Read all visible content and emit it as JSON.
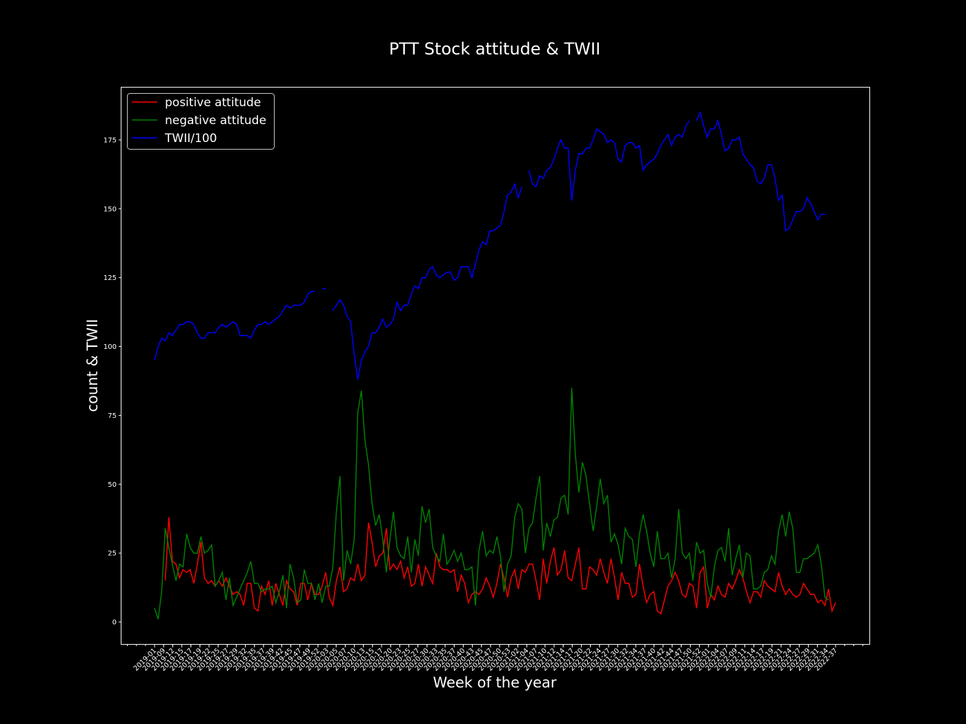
{
  "chart_data": {
    "type": "line",
    "title": "PTT Stock attitude & TWII",
    "xlabel": "Week of the year",
    "ylabel": "count & TWII",
    "ylim": [
      -8,
      194
    ],
    "yticks": [
      0,
      25,
      50,
      75,
      100,
      125,
      150,
      175
    ],
    "legend_position": "top-left",
    "grid": false,
    "x_tick_labels": [
      "2019-01",
      "2019-09",
      "2019-12",
      "2019-15",
      "2019-17",
      "2019-19",
      "2019-22",
      "2019-25",
      "2019-27",
      "2019-29",
      "2019-32",
      "2019-35",
      "2019-37",
      "2019-39",
      "2019-42",
      "2019-45",
      "2019-47",
      "2019-49",
      "2019-52",
      "2020-03",
      "2020-05",
      "2020-07",
      "2020-10",
      "2020-13",
      "2020-15",
      "2020-17",
      "2020-20",
      "2020-23",
      "2020-25",
      "2020-27",
      "2020-30",
      "2020-33",
      "2020-35",
      "2020-37",
      "2020-40",
      "2020-43",
      "2020-45",
      "2020-47",
      "2020-50",
      "2020-53",
      "2021-02",
      "2021-04",
      "2021-07",
      "2021-10",
      "2021-12",
      "2021-14",
      "2021-17",
      "2021-20",
      "2021-22",
      "2021-24",
      "2021-27",
      "2021-30",
      "2021-32",
      "2021-34",
      "2021-37",
      "2021-40",
      "2021-42",
      "2021-44",
      "2021-47",
      "2021-50",
      "2021-52",
      "2022-01",
      "2022-04",
      "2022-07",
      "2022-09",
      "2022-11",
      "2022-14",
      "2022-17",
      "2022-19",
      "2022-21",
      "2022-24",
      "2022-27",
      "2022-29",
      "2022-31",
      "2022-34",
      "2022-37"
    ],
    "series": [
      {
        "name": "positive attitude",
        "color": "#ff0000",
        "values": [
          null,
          null,
          null,
          15,
          38,
          22,
          21,
          16,
          19,
          18,
          19,
          14,
          21,
          29,
          16,
          14,
          15,
          13,
          15,
          13,
          16,
          13,
          10,
          11,
          10,
          6,
          14,
          14,
          5,
          4,
          13,
          10,
          15,
          6,
          14,
          10,
          6,
          15,
          12,
          11,
          6,
          14,
          14,
          8,
          14,
          10,
          10,
          13,
          18,
          9,
          6,
          15,
          20,
          11,
          12,
          16,
          15,
          21,
          15,
          17,
          36,
          29,
          20,
          24,
          25,
          34,
          19,
          21,
          19,
          22,
          16,
          20,
          13,
          14,
          21,
          13,
          20,
          17,
          14,
          25,
          20,
          19,
          19,
          18,
          19,
          11,
          17,
          14,
          7,
          10,
          11,
          10,
          12,
          16,
          13,
          9,
          14,
          21,
          16,
          9,
          16,
          19,
          12,
          19,
          18,
          21,
          21,
          15,
          8,
          23,
          14,
          22,
          27,
          17,
          19,
          26,
          16,
          15,
          21,
          27,
          12,
          12,
          20,
          19,
          17,
          23,
          18,
          14,
          23,
          16,
          8,
          18,
          14,
          14,
          9,
          10,
          21,
          13,
          7,
          10,
          11,
          4,
          3,
          8,
          13,
          15,
          18,
          15,
          10,
          9,
          14,
          13,
          5,
          18,
          20,
          5,
          10,
          8,
          13,
          10,
          9,
          14,
          12,
          15,
          19,
          16,
          11,
          7,
          11,
          11,
          9,
          15,
          13,
          12,
          11,
          18,
          13,
          10,
          12,
          10,
          9,
          10,
          14,
          12,
          10,
          10,
          7,
          8,
          6,
          12,
          4,
          7
        ]
      },
      {
        "name": "negative attitude",
        "color": "#008000",
        "values": [
          5,
          1,
          11,
          34,
          27,
          21,
          15,
          21,
          20,
          32,
          27,
          25,
          25,
          31,
          25,
          26,
          28,
          13,
          15,
          18,
          8,
          16,
          6,
          9,
          12,
          15,
          18,
          22,
          14,
          14,
          11,
          12,
          12,
          13,
          7,
          11,
          17,
          5,
          21,
          16,
          7,
          8,
          19,
          14,
          14,
          8,
          14,
          7,
          13,
          13,
          20,
          40,
          53,
          15,
          26,
          21,
          30,
          76,
          84,
          66,
          57,
          43,
          35,
          39,
          30,
          18,
          30,
          40,
          27,
          24,
          23,
          31,
          18,
          30,
          24,
          42,
          36,
          41,
          27,
          24,
          22,
          32,
          21,
          23,
          26,
          22,
          25,
          19,
          19,
          20,
          6,
          26,
          33,
          24,
          26,
          25,
          31,
          24,
          11,
          21,
          24,
          38,
          43,
          41,
          25,
          34,
          36,
          45,
          53,
          26,
          36,
          31,
          37,
          38,
          45,
          46,
          39,
          85,
          61,
          47,
          58,
          53,
          43,
          33,
          42,
          52,
          43,
          46,
          29,
          32,
          28,
          21,
          34,
          31,
          30,
          20,
          32,
          39,
          33,
          25,
          20,
          33,
          23,
          23,
          25,
          16,
          23,
          41,
          25,
          23,
          25,
          15,
          29,
          25,
          26,
          14,
          9,
          20,
          26,
          27,
          22,
          34,
          17,
          23,
          28,
          16,
          25,
          24,
          12,
          12,
          13,
          18,
          19,
          24,
          21,
          33,
          39,
          31,
          40,
          34,
          18,
          18,
          23,
          23,
          24,
          25,
          28,
          21,
          9,
          8
        ]
      },
      {
        "name": "TWII/100",
        "color": "#0000ff",
        "values": [
          95,
          100,
          103,
          102,
          105,
          104,
          106,
          108,
          108,
          109,
          109,
          108,
          105,
          103,
          103,
          105,
          105,
          105,
          107,
          108,
          107,
          108,
          109,
          108,
          104,
          104,
          104,
          103,
          106,
          108,
          108,
          109,
          108,
          109,
          110,
          111,
          113,
          115,
          114,
          115,
          115,
          115,
          116,
          119,
          120,
          120,
          null,
          121,
          121,
          null,
          113,
          115,
          117,
          115,
          111,
          109,
          97,
          88,
          95,
          98,
          100,
          105,
          105,
          107,
          110,
          107,
          108,
          110,
          116,
          113,
          115,
          115,
          119,
          122,
          121,
          125,
          125,
          128,
          129,
          126,
          125,
          126,
          127,
          127,
          124,
          125,
          129,
          129,
          129,
          125,
          130,
          135,
          138,
          137,
          142,
          142,
          143,
          144,
          149,
          155,
          156,
          159,
          154,
          158,
          null,
          164,
          159,
          158,
          162,
          161,
          164,
          165,
          168,
          172,
          175,
          172,
          172,
          153,
          164,
          170,
          170,
          172,
          172,
          175,
          179,
          178,
          177,
          174,
          175,
          174,
          168,
          167,
          173,
          174,
          174,
          172,
          173,
          164,
          166,
          167,
          168,
          170,
          173,
          175,
          177,
          173,
          176,
          177,
          176,
          180,
          182,
          null,
          182,
          185,
          180,
          176,
          179,
          179,
          182,
          177,
          171,
          172,
          175,
          175,
          176,
          170,
          168,
          166,
          165,
          160,
          159,
          161,
          166,
          166,
          161,
          153,
          155,
          142,
          143,
          146,
          149,
          149,
          150,
          154,
          152,
          149,
          146,
          148,
          148
        ]
      }
    ]
  }
}
